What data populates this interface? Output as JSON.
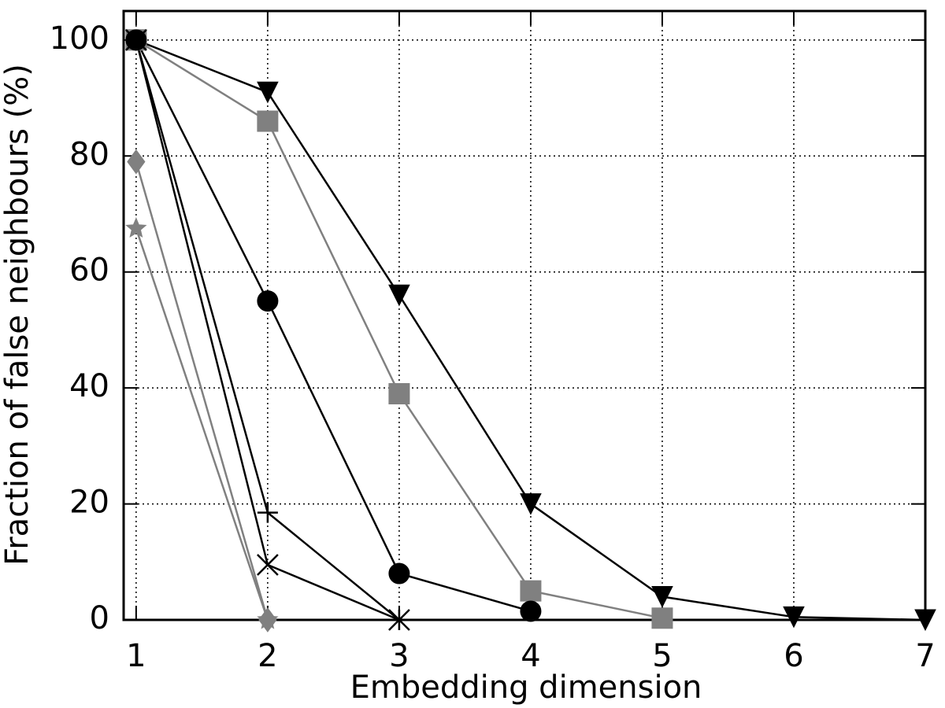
{
  "chart_data": {
    "type": "line",
    "x_label": "Embedding dimension",
    "y_label": "Fraction of false neighbours (%)",
    "x": [
      1,
      2,
      3,
      4,
      5,
      6,
      7
    ],
    "series": [
      {
        "color": "#000000",
        "marker": "triangle-down",
        "values": [
          100,
          91,
          56,
          20,
          4,
          0.5,
          0
        ]
      },
      {
        "color": "#808080",
        "marker": "square",
        "values": [
          100,
          86,
          39,
          5,
          0.3,
          null,
          null
        ]
      },
      {
        "color": "#000000",
        "marker": "circle",
        "values": [
          100,
          55,
          8,
          1.5,
          null,
          null,
          null
        ]
      },
      {
        "color": "#000000",
        "marker": "plus",
        "values": [
          100,
          18.5,
          0,
          null,
          null,
          null,
          null
        ]
      },
      {
        "color": "#000000",
        "marker": "cross",
        "values": [
          100,
          9.5,
          0,
          null,
          null,
          null,
          null
        ]
      },
      {
        "color": "#808080",
        "marker": "diamond",
        "values": [
          79,
          0,
          null,
          null,
          null,
          null,
          null
        ]
      },
      {
        "color": "#808080",
        "marker": "star",
        "values": [
          67.5,
          0,
          null,
          null,
          null,
          null,
          null
        ]
      }
    ],
    "xlim": [
      0.905,
      7
    ],
    "ylim": [
      0,
      105
    ],
    "xticks": [
      1,
      2,
      3,
      4,
      5,
      6,
      7
    ],
    "yticks": [
      0,
      20,
      40,
      60,
      80,
      100
    ],
    "grid": true
  }
}
